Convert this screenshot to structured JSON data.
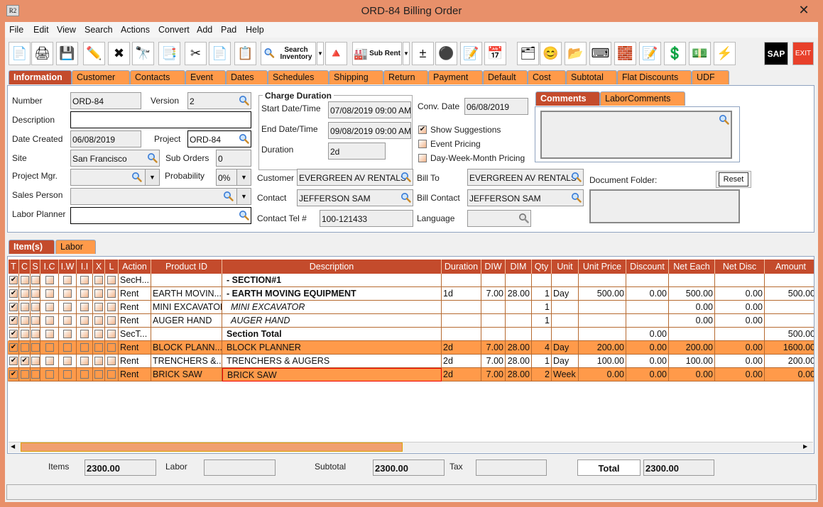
{
  "window": {
    "title": "ORD-84 Billing Order",
    "app_icon": "R2"
  },
  "menu": [
    "File",
    "Edit",
    "View",
    "Search",
    "Actions",
    "Convert",
    "Add",
    "Pad",
    "Help"
  ],
  "toolbar": {
    "search_inventory": "Search Inventory",
    "sub_rent": "Sub Rent",
    "sap": "SAP",
    "exit": "EXIT"
  },
  "tabs": [
    "Information",
    "Customer",
    "Contacts",
    "Event",
    "Dates",
    "Schedules",
    "Shipping",
    "Return",
    "Payment",
    "Default",
    "Cost",
    "Subtotal",
    "Flat Discounts",
    "UDF"
  ],
  "info": {
    "number_label": "Number",
    "number": "ORD-84",
    "version_label": "Version",
    "version": "2",
    "description_label": "Description",
    "description": "",
    "date_created_label": "Date Created",
    "date_created": "06/08/2019",
    "project_label": "Project",
    "project": "ORD-84",
    "site_label": "Site",
    "site": "San Francisco",
    "sub_orders_label": "Sub Orders",
    "sub_orders": "0",
    "project_mgr_label": "Project Mgr.",
    "project_mgr": "",
    "probability_label": "Probability",
    "probability": "0%",
    "sales_person_label": "Sales Person",
    "sales_person": "",
    "labor_planner_label": "Labor Planner",
    "labor_planner": "",
    "charge_duration_label": "Charge Duration",
    "start_label": "Start Date/Time",
    "start": "07/08/2019 09:00 AM",
    "end_label": "End Date/Time",
    "end": "09/08/2019 09:00 AM",
    "duration_label": "Duration",
    "duration": "2d",
    "customer_label": "Customer",
    "customer": "EVERGREEN AV RENTALS",
    "contact_label": "Contact",
    "contact": "JEFFERSON SAM",
    "contact_tel_label": "Contact Tel #",
    "contact_tel": "100-121433",
    "conv_date_label": "Conv. Date",
    "conv_date": "06/08/2019",
    "show_suggestions": "Show Suggestions",
    "show_suggestions_checked": true,
    "event_pricing": "Event Pricing",
    "event_pricing_checked": false,
    "dwm_pricing": "Day-Week-Month Pricing",
    "dwm_pricing_checked": false,
    "bill_to_label": "Bill To",
    "bill_to": "EVERGREEN AV RENTALS",
    "bill_contact_label": "Bill Contact",
    "bill_contact": "JEFFERSON SAM",
    "language_label": "Language",
    "language": "",
    "comments_tabs": [
      "Comments",
      "LaborComments"
    ],
    "document_folder_label": "Document Folder:",
    "reset": "Reset"
  },
  "item_tabs": [
    "Item(s)",
    "Labor"
  ],
  "grid": {
    "columns": [
      "T",
      "C",
      "S",
      "I.C",
      "I.W",
      "I.I",
      "X",
      "L",
      "Action",
      "Product ID",
      "Description",
      "Duration",
      "DIW",
      "DIM",
      "Qty",
      "Unit",
      "Unit Price",
      "Discount",
      "Net Each",
      "Net Disc",
      "Amount"
    ],
    "rows": [
      {
        "checks": [
          1,
          0,
          0,
          0,
          0,
          0,
          0,
          0
        ],
        "action": "SecH...",
        "product": "",
        "desc": "-  SECTION#1",
        "style": "bold",
        "duration": "",
        "diw": "",
        "dim": "",
        "qty": "",
        "unit": "",
        "unit_price": "",
        "discount": "",
        "net_each": "",
        "net_disc": "",
        "amount": "",
        "highlight": false
      },
      {
        "checks": [
          1,
          0,
          0,
          0,
          0,
          0,
          0,
          0
        ],
        "action": "Rent",
        "product": "EARTH MOVIN...",
        "desc": "-  EARTH MOVING EQUIPMENT",
        "style": "bold",
        "duration": "1d",
        "diw": "7.00",
        "dim": "28.00",
        "qty": "1",
        "unit": "Day",
        "unit_price": "500.00",
        "discount": "0.00",
        "net_each": "500.00",
        "net_disc": "0.00",
        "amount": "500.00",
        "highlight": false
      },
      {
        "checks": [
          1,
          0,
          0,
          0,
          0,
          0,
          0,
          0
        ],
        "action": "Rent",
        "product": "MINI EXCAVATOR",
        "desc": "MINI EXCAVATOR",
        "style": "italic",
        "duration": "",
        "diw": "",
        "dim": "",
        "qty": "1",
        "unit": "",
        "unit_price": "",
        "discount": "",
        "net_each": "0.00",
        "net_disc": "0.00",
        "amount": "",
        "highlight": false
      },
      {
        "checks": [
          1,
          0,
          0,
          0,
          0,
          0,
          0,
          0
        ],
        "action": "Rent",
        "product": "AUGER HAND",
        "desc": "AUGER HAND",
        "style": "italic",
        "duration": "",
        "diw": "",
        "dim": "",
        "qty": "1",
        "unit": "",
        "unit_price": "",
        "discount": "",
        "net_each": "0.00",
        "net_disc": "0.00",
        "amount": "",
        "highlight": false
      },
      {
        "checks": [
          1,
          0,
          0,
          0,
          0,
          0,
          0,
          0
        ],
        "action": "SecT...",
        "product": "",
        "desc": "Section Total",
        "style": "bold",
        "duration": "",
        "diw": "",
        "dim": "",
        "qty": "",
        "unit": "",
        "unit_price": "",
        "discount": "0.00",
        "net_each": "",
        "net_disc": "",
        "amount": "500.00",
        "highlight": false
      },
      {
        "checks": [
          1,
          0,
          0,
          0,
          0,
          0,
          0,
          0
        ],
        "action": "Rent",
        "product": "BLOCK PLANN...",
        "desc": "BLOCK PLANNER",
        "style": "",
        "duration": "2d",
        "diw": "7.00",
        "dim": "28.00",
        "qty": "4",
        "unit": "Day",
        "unit_price": "200.00",
        "discount": "0.00",
        "net_each": "200.00",
        "net_disc": "0.00",
        "amount": "1600.00",
        "highlight": true
      },
      {
        "checks": [
          1,
          1,
          0,
          0,
          0,
          0,
          0,
          0
        ],
        "action": "Rent",
        "product": "TRENCHERS &...",
        "desc": "TRENCHERS & AUGERS",
        "style": "",
        "duration": "2d",
        "diw": "7.00",
        "dim": "28.00",
        "qty": "1",
        "unit": "Day",
        "unit_price": "100.00",
        "discount": "0.00",
        "net_each": "100.00",
        "net_disc": "0.00",
        "amount": "200.00",
        "highlight": false
      },
      {
        "checks": [
          1,
          0,
          0,
          0,
          0,
          0,
          0,
          0
        ],
        "action": "Rent",
        "product": "BRICK SAW",
        "desc": "BRICK SAW",
        "style": "selected",
        "duration": "2d",
        "diw": "7.00",
        "dim": "28.00",
        "qty": "2",
        "unit": "Week",
        "unit_price": "0.00",
        "discount": "0.00",
        "net_each": "0.00",
        "net_disc": "0.00",
        "amount": "0.00",
        "highlight": true
      }
    ]
  },
  "footer": {
    "items_label": "Items",
    "items": "2300.00",
    "labor_label": "Labor",
    "labor": "",
    "subtotal_label": "Subtotal",
    "subtotal": "2300.00",
    "tax_label": "Tax",
    "tax": "",
    "total_label": "Total",
    "total": "2300.00"
  },
  "colors": {
    "accent": "#C44B2C",
    "tab": "#FF9A4A",
    "title": "#E8906A"
  }
}
